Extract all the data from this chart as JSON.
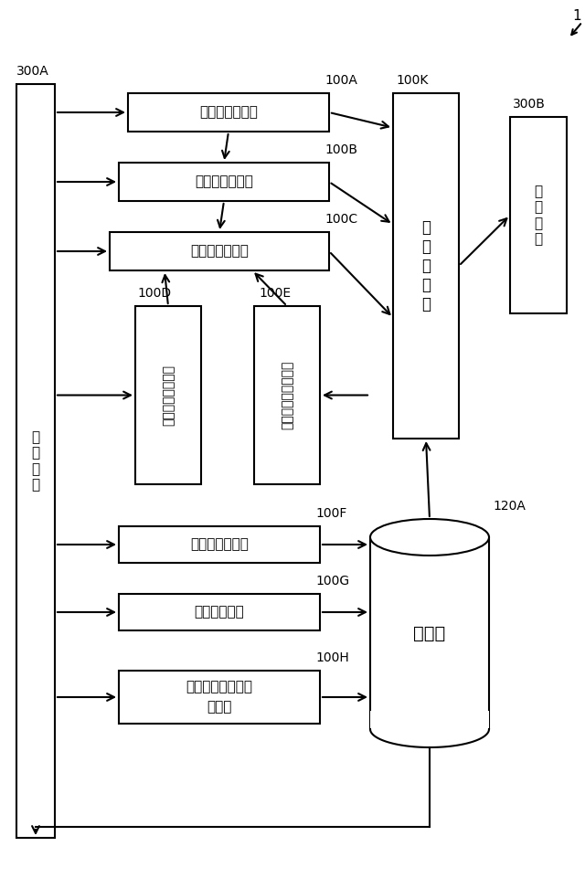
{
  "bg_color": "#ffffff",
  "label_300A": "300A",
  "label_300B": "300B",
  "label_100A": "100A",
  "label_100B": "100B",
  "label_100C": "100C",
  "label_100D": "100D",
  "label_100E": "100E",
  "label_100F": "100F",
  "label_100G": "100G",
  "label_100H": "100H",
  "label_100K": "100K",
  "label_120A": "120A",
  "label_1": "1",
  "text_300A": "入\n力\n装\n置",
  "text_100A": "長期計画作成部",
  "text_100B": "中期計画作成部",
  "text_100C": "短期計画作成部",
  "text_100D": "シフト予定作成部",
  "text_100E": "作業スピード計算部",
  "text_100K": "画\n面\n生\n成\n部",
  "text_300B": "表\n示\n装\n置",
  "text_100F": "作業記録入力部",
  "text_100G": "病害虫入力部",
  "text_100H_1": "収出荷・売上記録",
  "text_100H_2": "入力部",
  "text_120A": "記憑部"
}
